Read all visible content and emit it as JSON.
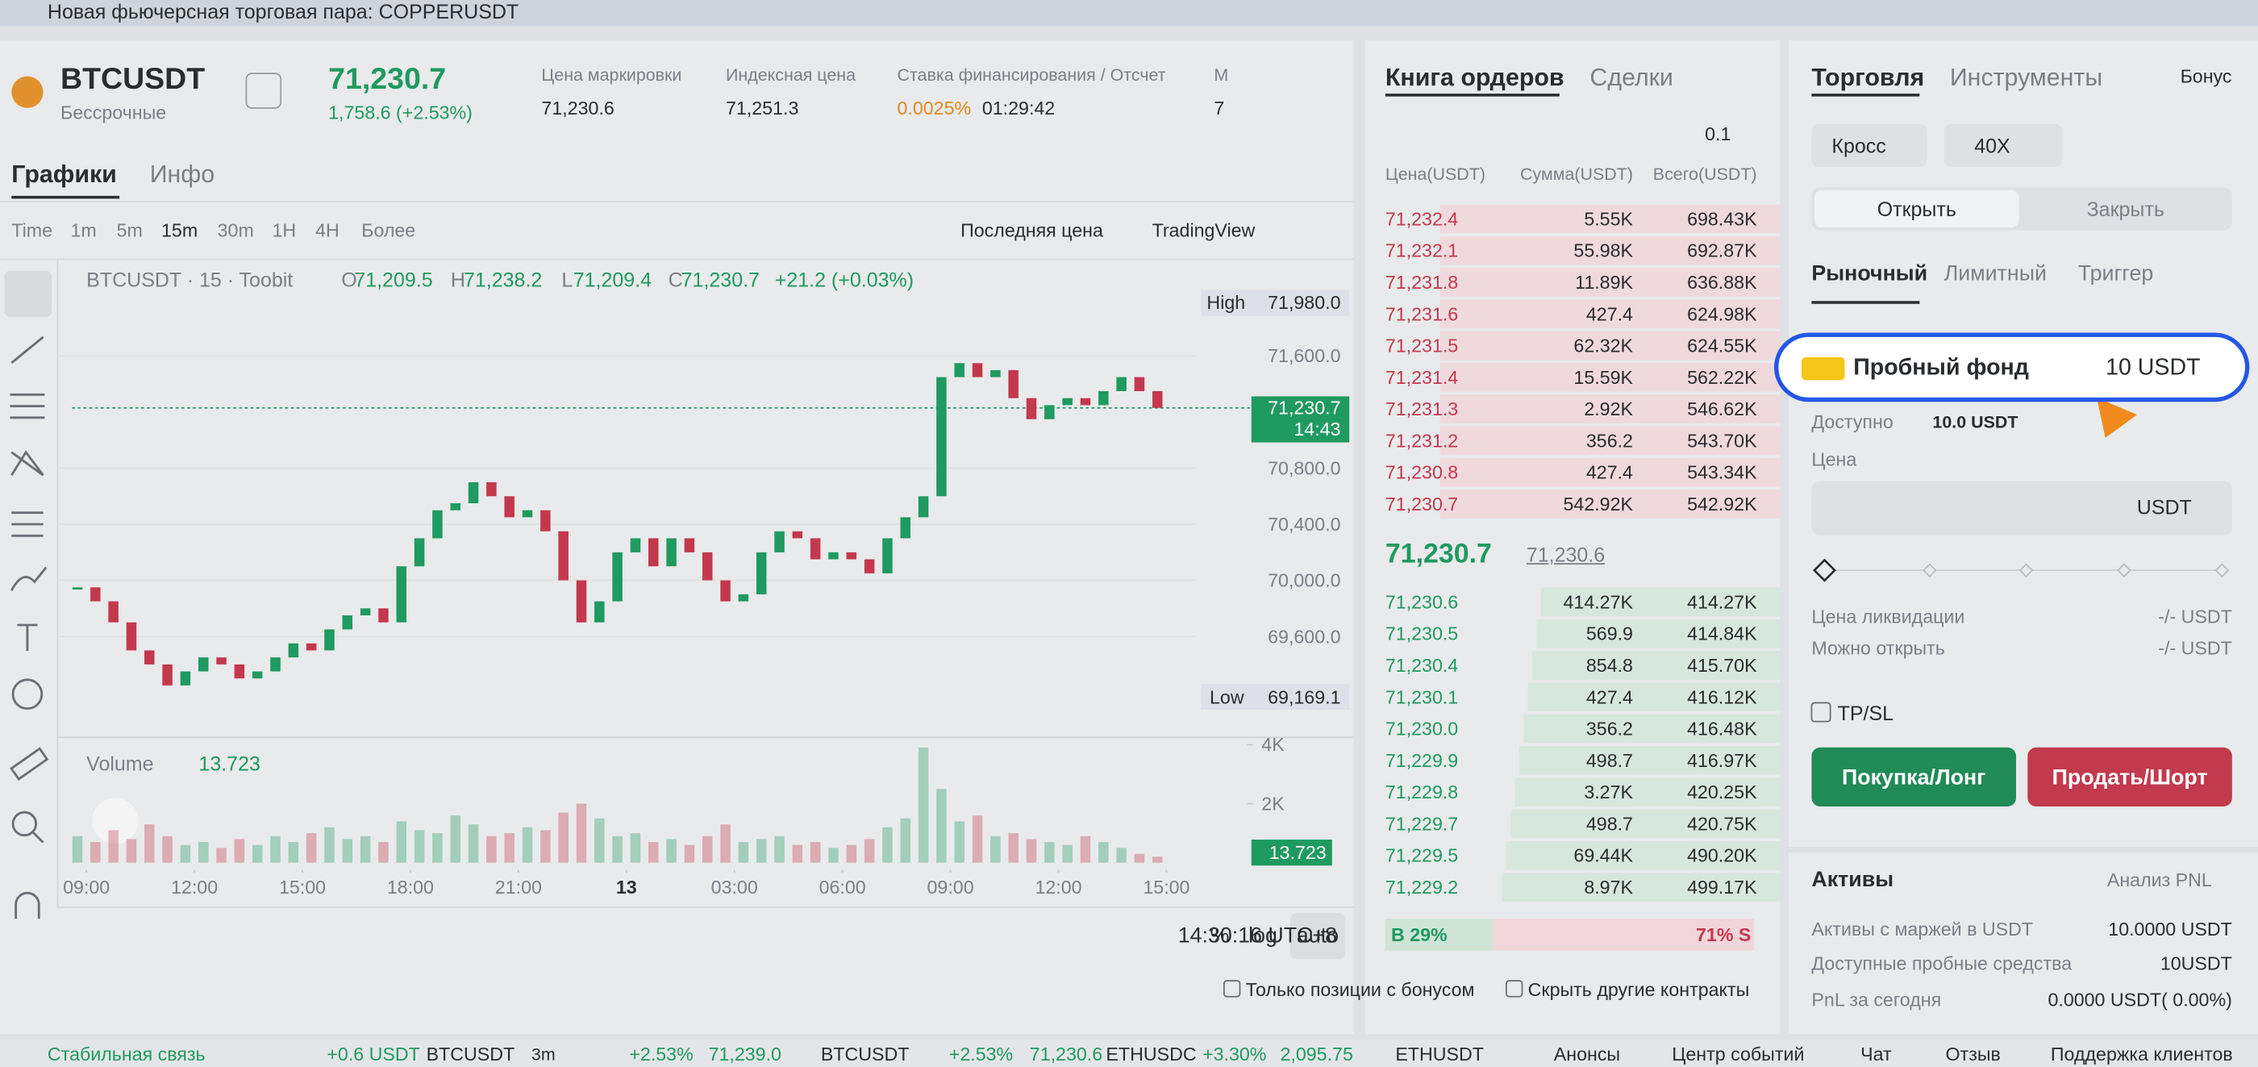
{
  "banner": {
    "text": "Новая фьючерсная торговая пара: COPPERUSDT"
  },
  "header": {
    "symbol": "BTCUSDT",
    "contract": "Бессрочные",
    "price": "71,230.7",
    "change": "1,758.6 (+2.53%)",
    "stats": [
      {
        "label": "Цена маркировки",
        "value": "71,230.6"
      },
      {
        "label": "Индексная цена",
        "value": "71,251.3"
      },
      {
        "label": "Ставка финансирования / Отсчет",
        "value": "0.0025%",
        "extra": "01:29:42"
      },
      {
        "label": "М",
        "value": "7"
      }
    ]
  },
  "chart_tabs": [
    "Графики",
    "Инфо"
  ],
  "toolbar": {
    "intervals": [
      "Time",
      "1m",
      "5m",
      "15m",
      "30m",
      "1H",
      "4H",
      "Более"
    ],
    "price_type": "Последняя цена",
    "view": "TradingView"
  },
  "legend": {
    "title": "BTCUSDT · 15 · Toobit",
    "o_label": "O",
    "o": "71,209.5",
    "h_label": "H",
    "h": "71,238.2",
    "l_label": "L",
    "l": "71,209.4",
    "c_label": "C",
    "c": "71,230.7",
    "change": "+21.2 (+0.03%)"
  },
  "price_chart": {
    "type": "candlestick",
    "x": [
      8.75,
      9.25,
      9.75,
      10.25,
      10.75,
      11.25,
      11.75,
      12.25,
      12.75,
      13.25,
      13.75,
      14.25,
      14.75,
      15.25,
      15.75,
      16.25,
      16.75,
      17.25,
      17.75,
      18.25,
      18.75,
      19.25,
      19.75,
      20.25,
      20.75,
      21.25,
      21.75,
      22.25,
      22.75,
      23.25,
      23.75,
      24.25,
      24.75,
      25.25,
      25.75,
      26.25,
      26.75,
      27.25,
      27.75,
      28.25,
      28.75,
      29.25,
      29.75,
      30.25,
      30.75,
      31.25,
      31.75,
      32.25,
      32.75,
      33.25,
      33.75,
      34.25,
      34.75,
      35.25,
      35.75,
      36.25,
      36.75,
      37.25,
      37.75,
      38.25,
      38.75
    ],
    "closes": [
      69950,
      69850,
      69700,
      69500,
      69400,
      69250,
      69350,
      69450,
      69400,
      69300,
      69350,
      69450,
      69550,
      69500,
      69650,
      69750,
      69800,
      69700,
      70100,
      70300,
      70500,
      70550,
      70700,
      70600,
      70450,
      70500,
      70350,
      70000,
      69700,
      69850,
      70200,
      70300,
      70100,
      70300,
      70200,
      70000,
      69850,
      69900,
      70200,
      70350,
      70300,
      70150,
      70200,
      70150,
      70050,
      70300,
      70450,
      70600,
      71450,
      71550,
      71450,
      71500,
      71300,
      71150,
      71250,
      71300,
      71250,
      71350,
      71450,
      71350,
      71230.7
    ],
    "volumes": [
      900,
      700,
      1100,
      800,
      1300,
      900,
      600,
      700,
      500,
      800,
      600,
      900,
      700,
      1000,
      1200,
      800,
      900,
      700,
      1400,
      1100,
      1000,
      1600,
      1300,
      900,
      1000,
      1200,
      1100,
      1700,
      2000,
      1500,
      900,
      1000,
      700,
      800,
      600,
      900,
      1300,
      700,
      800,
      900,
      600,
      700,
      500,
      600,
      800,
      1200,
      1500,
      3900,
      2500,
      1400,
      1600,
      900,
      1000,
      800,
      700,
      600,
      900,
      700,
      500,
      300,
      200
    ],
    "xlim": [
      8.6,
      39.8
    ],
    "xticks": [
      {
        "value": 9,
        "label": "09:00"
      },
      {
        "value": 12,
        "label": "12:00"
      },
      {
        "value": 15,
        "label": "15:00"
      },
      {
        "value": 18,
        "label": "18:00"
      },
      {
        "value": 21,
        "label": "21:00"
      },
      {
        "value": 24,
        "label": "13"
      },
      {
        "value": 27,
        "label": "03:00"
      },
      {
        "value": 30,
        "label": "06:00"
      },
      {
        "value": 33,
        "label": "09:00"
      },
      {
        "value": 36,
        "label": "12:00"
      },
      {
        "value": 39,
        "label": "15:00"
      }
    ],
    "ylim": [
      68900,
      72240
    ],
    "yticks": [
      {
        "value": 71600,
        "label": "71,600.0"
      },
      {
        "value": 70800,
        "label": "70,800.0"
      },
      {
        "value": 70400,
        "label": "70,400.0"
      },
      {
        "value": 70000,
        "label": "70,000.0"
      },
      {
        "value": 69600,
        "label": "69,600.0"
      }
    ],
    "high_label": "High",
    "high": {
      "value": 71980,
      "label": "71,980.0"
    },
    "low_label": "Low",
    "low": {
      "value": 69169.1,
      "label": "69,169.1"
    },
    "last": {
      "value": 71230.7,
      "label": "71,230.7"
    },
    "countdown": "14:43",
    "volume_label": "Volume",
    "volume_value": "13.723",
    "volume_last": "13.723",
    "vlim": [
      0,
      4250
    ],
    "vticks": [
      {
        "value": 2000,
        "label": "2K"
      },
      {
        "value": 4000,
        "label": "4K"
      }
    ],
    "up_color": "#1f9a60",
    "down_color": "#c4384d"
  },
  "chart_footer": {
    "time": "14:30:16 UTC+8",
    "percent": "%",
    "log": "log",
    "auto": "auto"
  },
  "order_book": {
    "tabs": [
      "Книга ордеров",
      "Сделки"
    ],
    "step": "0.1",
    "columns": [
      "Цена(USDT)",
      "Сумма(USDT)",
      "Всего(USDT)"
    ],
    "asks": [
      [
        "71,232.4",
        "5.55K",
        "698.43K"
      ],
      [
        "71,232.1",
        "55.98K",
        "692.87K"
      ],
      [
        "71,231.8",
        "11.89K",
        "636.88K"
      ],
      [
        "71,231.6",
        "427.4",
        "624.98K"
      ],
      [
        "71,231.5",
        "62.32K",
        "624.55K"
      ],
      [
        "71,231.4",
        "15.59K",
        "562.22K"
      ],
      [
        "71,231.3",
        "2.92K",
        "546.62K"
      ],
      [
        "71,231.2",
        "356.2",
        "543.70K"
      ],
      [
        "71,230.8",
        "427.4",
        "543.34K"
      ],
      [
        "71,230.7",
        "542.92K",
        "542.92K"
      ]
    ],
    "last_price": "71,230.7",
    "mark_price": "71,230.6",
    "bids": [
      [
        "71,230.6",
        "414.27K",
        "414.27K"
      ],
      [
        "71,230.5",
        "569.9",
        "414.84K"
      ],
      [
        "71,230.4",
        "854.8",
        "415.70K"
      ],
      [
        "71,230.1",
        "427.4",
        "416.12K"
      ],
      [
        "71,230.0",
        "356.2",
        "416.48K"
      ],
      [
        "71,229.9",
        "498.7",
        "416.97K"
      ],
      [
        "71,229.8",
        "3.27K",
        "420.25K"
      ],
      [
        "71,229.7",
        "498.7",
        "420.75K"
      ],
      [
        "71,229.5",
        "69.44K",
        "490.20K"
      ],
      [
        "71,229.2",
        "8.97K",
        "499.17K"
      ]
    ],
    "buy_ratio": {
      "value": 29,
      "label": "B 29%"
    },
    "sell_ratio": {
      "value": 71,
      "label": "71% S"
    }
  },
  "filters": [
    "Только позиции с бонусом",
    "Скрыть другие контракты"
  ],
  "trade_panel": {
    "tabs": [
      "Торговля",
      "Инструменты"
    ],
    "bonus": "Бонус",
    "margin_mode": "Кросс",
    "leverage": "40X",
    "sides": [
      "Открыть",
      "Закрыть"
    ],
    "order_types": [
      "Рыночный",
      "Лимитный",
      "Триггер"
    ],
    "trial_fund": {
      "label": "Пробный фонд",
      "amount": "10 USDT"
    },
    "available_label": "Доступно",
    "available": "10.0 USDT",
    "price_label": "Цена",
    "price_unit": "USDT",
    "liq_label": "Цена ликвидации",
    "liq_value": "-/- USDT",
    "open_label": "Можно открыть",
    "open_value": "-/- USDT",
    "tpsl": "TP/SL",
    "buy": "Покупка/Лонг",
    "sell": "Продать/Шорт"
  },
  "assets": {
    "title": "Активы",
    "pnl_link": "Анализ PNL",
    "rows": [
      [
        "Активы с маржей в USDT",
        "10.0000 USDT"
      ],
      [
        "Доступные пробные средства",
        "10USDT"
      ],
      [
        "PnL за сегодня",
        "0.0000 USDT( 0.00%)"
      ]
    ]
  },
  "status_bar": {
    "connection": "Стабильная связь",
    "pnl": "+0.6 USDT",
    "pnl_symbol": "BTCUSDT",
    "period": "3m",
    "tickers": [
      [
        "BTCUSDT",
        "+2.53%",
        "71,239.0"
      ],
      [
        "BTCUSDT",
        "+2.53%",
        "71,230.6"
      ],
      [
        "ETHUSDC",
        "+3.30%",
        "2,095.75"
      ],
      [
        "ETHUSDT",
        "",
        ""
      ]
    ],
    "links": [
      "Анонсы",
      "Центр событий",
      "Чат",
      "Отзыв",
      "Поддержка клиентов"
    ]
  }
}
